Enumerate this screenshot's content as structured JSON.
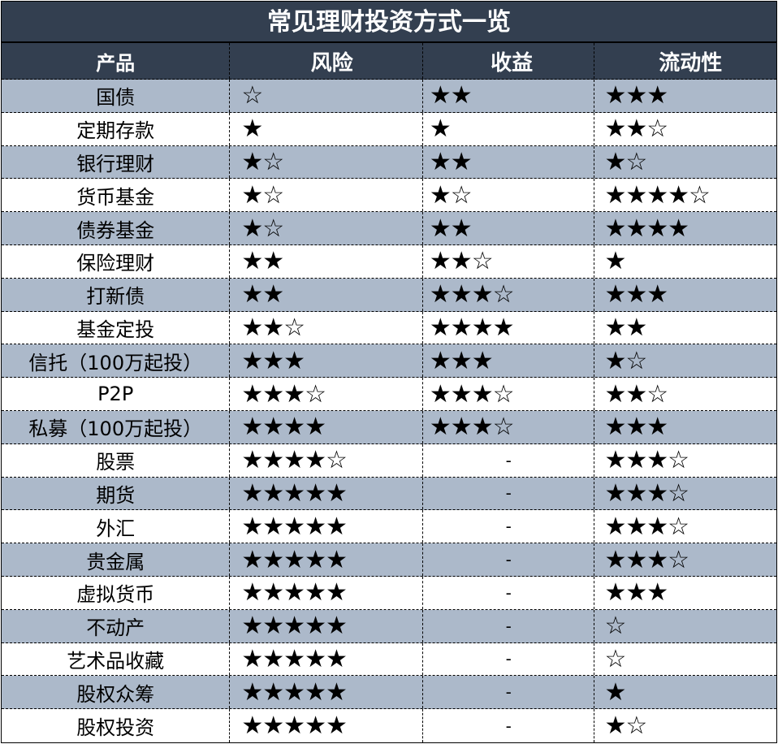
{
  "title": "常见理财投资方式一览",
  "headers": [
    "产品",
    "风险",
    "收益",
    "流动性"
  ],
  "colors": {
    "header_bg": "#333f50",
    "stripe": "#acb9ca"
  },
  "rows": [
    [
      "国债",
      "☆",
      "★★",
      "★★★"
    ],
    [
      "定期存款",
      "★",
      "★",
      "★★☆"
    ],
    [
      "银行理财",
      "★☆",
      "★★",
      "★☆"
    ],
    [
      "货币基金",
      "★☆",
      "★☆",
      "★★★★☆"
    ],
    [
      "债券基金",
      "★☆",
      "★★",
      "★★★★"
    ],
    [
      "保险理财",
      "★★",
      "★★☆",
      "★"
    ],
    [
      "打新债",
      "★★",
      "★★★☆",
      "★★★"
    ],
    [
      "基金定投",
      "★★☆",
      "★★★★",
      "★★"
    ],
    [
      "信托（100万起投）",
      "★★★",
      "★★★",
      "★☆"
    ],
    [
      "P2P",
      "★★★☆",
      "★★★☆",
      "★★☆"
    ],
    [
      "私募（100万起投）",
      "★★★★",
      "★★★☆",
      "★★★"
    ],
    [
      "股票",
      "★★★★☆",
      "-",
      "★★★☆"
    ],
    [
      "期货",
      "★★★★★",
      "-",
      "★★★☆"
    ],
    [
      "外汇",
      "★★★★★",
      "-",
      "★★★☆"
    ],
    [
      "贵金属",
      "★★★★★",
      "-",
      "★★★☆"
    ],
    [
      "虚拟货币",
      "★★★★★",
      "-",
      "★★★"
    ],
    [
      "不动产",
      "★★★★★",
      "-",
      "☆"
    ],
    [
      "艺术品收藏",
      "★★★★★",
      "-",
      "☆"
    ],
    [
      "股权众筹",
      "★★★★★",
      "-",
      "★"
    ],
    [
      "股权投资",
      "★★★★★",
      "-",
      "★☆"
    ]
  ]
}
